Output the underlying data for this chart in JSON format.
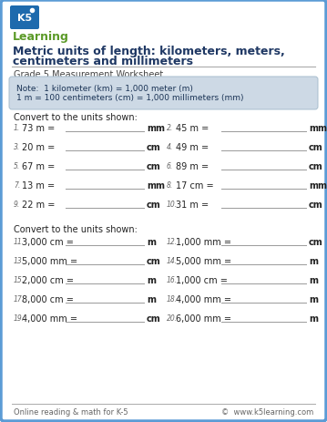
{
  "title_line1": "Metric units of length: kilometers, meters,",
  "title_line2": "centimeters and millimeters",
  "subtitle": "Grade 5 Measurement Worksheet",
  "note_line1": "Note:  1 kilometer (km) = 1,000 meter (m)",
  "note_line2": "1 m = 100 centimeters (cm) = 1,000 millimeters (mm)",
  "section1_header": "Convert to the units shown:",
  "section2_header": "Convert to the units shown:",
  "problems_section1": [
    [
      "1.",
      "73 m =",
      "mm",
      "2.",
      "45 m =",
      "mm"
    ],
    [
      "3.",
      "20 m =",
      "cm",
      "4.",
      "49 m =",
      "cm"
    ],
    [
      "5.",
      "67 m =",
      "cm",
      "6.",
      "89 m =",
      "cm"
    ],
    [
      "7.",
      "13 m =",
      "mm",
      "8.",
      "17 cm =",
      "mm"
    ],
    [
      "9.",
      "22 m =",
      "cm",
      "10.",
      "31 m =",
      "cm"
    ]
  ],
  "problems_section2": [
    [
      "11.",
      "3,000 cm =",
      "m",
      "12.",
      "1,000 mm =",
      "cm"
    ],
    [
      "13.",
      "5,000 mm =",
      "cm",
      "14.",
      "5,000 mm =",
      "m"
    ],
    [
      "15.",
      "2,000 cm =",
      "m",
      "16.",
      "1,000 cm =",
      "m"
    ],
    [
      "17.",
      "8,000 cm =",
      "m",
      "18.",
      "4,000 mm =",
      "m"
    ],
    [
      "19.",
      "4,000 mm =",
      "cm",
      "20.",
      "6,000 mm =",
      "m"
    ]
  ],
  "footer_left": "Online reading & math for K-5",
  "footer_right": "©  www.k5learning.com",
  "border_color": "#5b9bd5",
  "title_color": "#1f3864",
  "subtitle_color": "#444444",
  "text_color": "#222222",
  "note_bg_color": "#cdd9e5",
  "note_text_color": "#1a3355",
  "unit_color": "#222222",
  "line_color": "#999999",
  "footer_color": "#666666",
  "logo_blue": "#1e6aad",
  "logo_green": "#5b9a28",
  "logo_text_white": "#ffffff"
}
